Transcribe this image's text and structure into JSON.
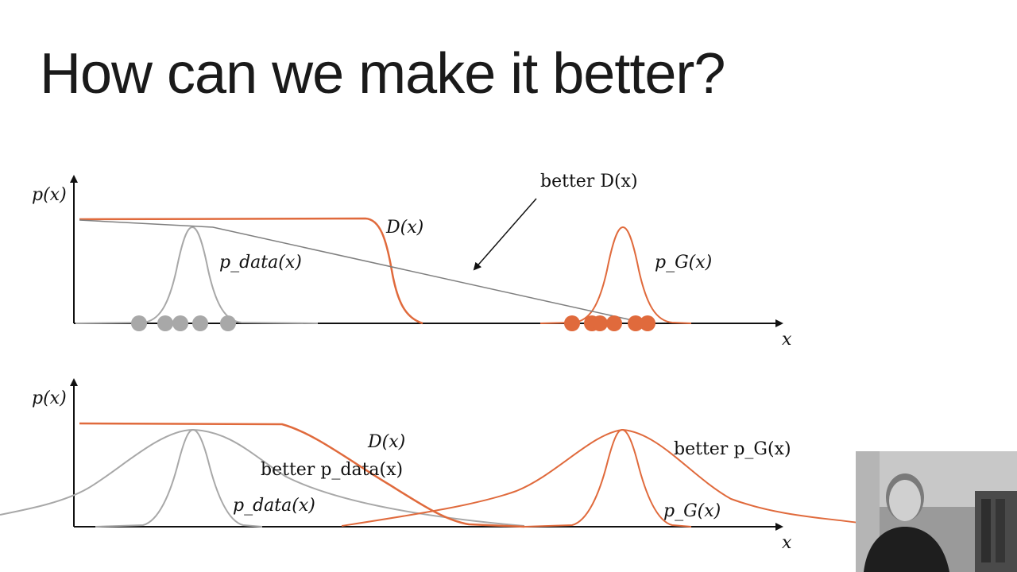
{
  "slide": {
    "title": "How can we make it better?"
  },
  "colors": {
    "orange": "#e06a3c",
    "gray": "#a8a8a8",
    "dark_gray": "#7f7f7f",
    "axis": "#111111"
  },
  "top_diagram": {
    "y_axis_label": "p(x)",
    "x_axis_label": "x",
    "labels": {
      "discriminator": "D(x)",
      "p_data": "p_data(x)",
      "p_g": "p_G(x)",
      "better_discriminator": "better D(x)"
    }
  },
  "bottom_diagram": {
    "y_axis_label": "p(x)",
    "x_axis_label": "x",
    "labels": {
      "discriminator": "D(x)",
      "better_p_data": "better p_data(x)",
      "p_data": "p_data(x)",
      "better_p_g": "better p_G(x)",
      "p_g": "p_G(x)"
    }
  },
  "webcam": {
    "icon": "presenter-video-thumbnail"
  }
}
